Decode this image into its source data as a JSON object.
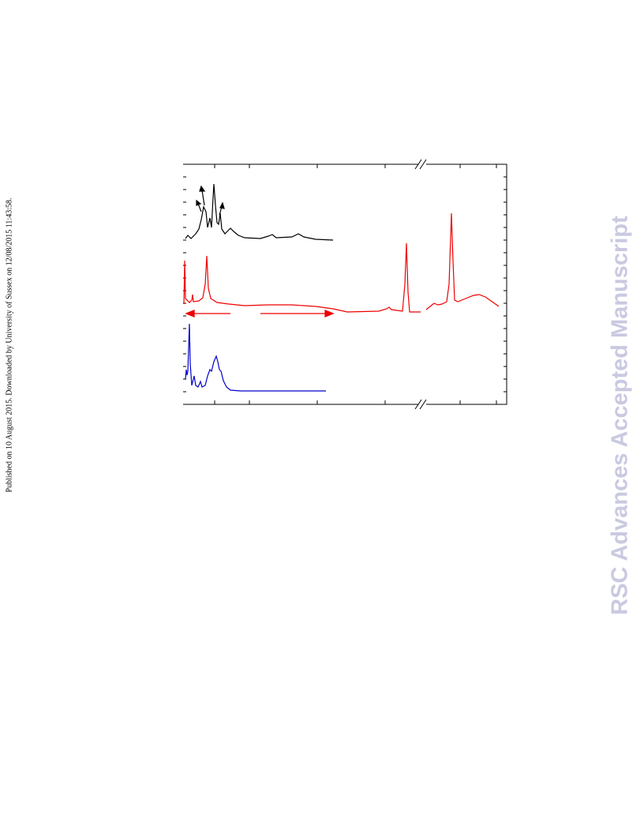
{
  "side_note": "Published on 10 August 2015. Downloaded by University of Sussex on 12/08/2015 11:43:58.",
  "watermark": "RSC Advances Accepted Manuscript"
}
